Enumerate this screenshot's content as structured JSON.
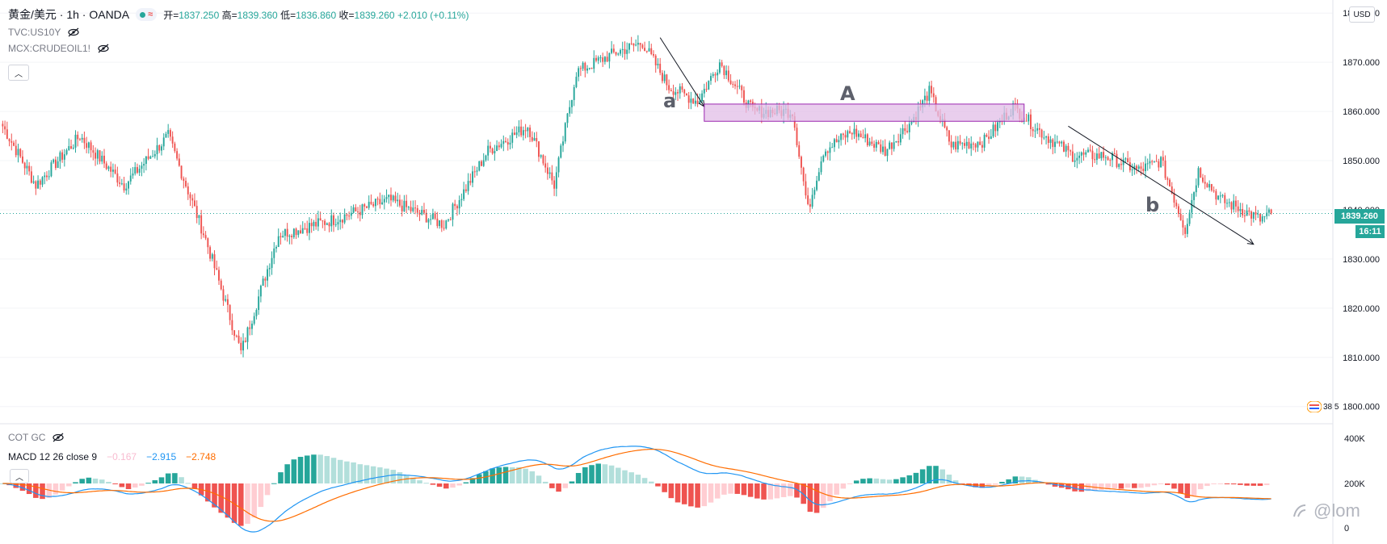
{
  "header": {
    "title": "黄金/美元 · 1h · OANDA",
    "ohlc": [
      {
        "label": "开",
        "value": "1837.250"
      },
      {
        "label": "高",
        "value": "1839.360"
      },
      {
        "label": "低",
        "value": "1836.860"
      },
      {
        "label": "收",
        "value": "1839.260"
      }
    ],
    "change": "+2.010 (+0.11%)",
    "overlays": [
      "TVC:US10Y",
      "MCX:CRUDEOIL1!"
    ],
    "currency_button": "USD"
  },
  "price_tag": {
    "value": "1839.260",
    "countdown": "16:11"
  },
  "indicators": {
    "cot": "COT GC",
    "macd_label": "MACD 12 26 close 9",
    "macd_hist": "−0.167",
    "macd_line": "−2.915",
    "macd_signal": "−2.748",
    "flag_text": "38 5"
  },
  "annotations": {
    "a": "a",
    "A": "A",
    "b": "b"
  },
  "watermark": "@lom",
  "colors": {
    "up": "#26a69a",
    "down": "#ef5350",
    "macd": "#2196f3",
    "signal": "#ff6d00",
    "box": "#e1bee7"
  },
  "chart_data": {
    "type": "candlestick",
    "symbol": "XAUUSD",
    "price_axis": {
      "ticks": [
        1800,
        1810,
        1820,
        1830,
        1840,
        1850,
        1860,
        1870,
        1880
      ],
      "ylim": [
        1797,
        1882
      ],
      "tick_labels": [
        "1800.000",
        "1810.000",
        "1820.000",
        "1830.000",
        "1840.000",
        "1850.000",
        "1860.000",
        "1870.000",
        "1880.000"
      ]
    },
    "macd_axis": {
      "tick_labels": [
        "400K",
        "200K",
        "0"
      ]
    },
    "key_points": [
      {
        "x": 0,
        "price": 1857
      },
      {
        "x": 15,
        "price": 1845
      },
      {
        "x": 35,
        "price": 1855
      },
      {
        "x": 55,
        "price": 1845
      },
      {
        "x": 75,
        "price": 1855
      },
      {
        "x": 92,
        "price": 1834
      },
      {
        "x": 108,
        "price": 1811
      },
      {
        "x": 125,
        "price": 1835
      },
      {
        "x": 150,
        "price": 1838
      },
      {
        "x": 175,
        "price": 1842
      },
      {
        "x": 200,
        "price": 1837
      },
      {
        "x": 220,
        "price": 1852
      },
      {
        "x": 238,
        "price": 1857
      },
      {
        "x": 250,
        "price": 1845
      },
      {
        "x": 260,
        "price": 1868
      },
      {
        "x": 278,
        "price": 1872
      },
      {
        "x": 290,
        "price": 1874
      },
      {
        "x": 302,
        "price": 1865
      },
      {
        "x": 315,
        "price": 1862
      },
      {
        "x": 325,
        "price": 1870
      },
      {
        "x": 340,
        "price": 1860
      },
      {
        "x": 358,
        "price": 1860
      },
      {
        "x": 365,
        "price": 1840
      },
      {
        "x": 372,
        "price": 1852
      },
      {
        "x": 385,
        "price": 1856
      },
      {
        "x": 400,
        "price": 1852
      },
      {
        "x": 412,
        "price": 1858
      },
      {
        "x": 420,
        "price": 1864
      },
      {
        "x": 430,
        "price": 1853
      },
      {
        "x": 445,
        "price": 1854
      },
      {
        "x": 458,
        "price": 1861
      },
      {
        "x": 470,
        "price": 1856
      },
      {
        "x": 485,
        "price": 1851
      },
      {
        "x": 500,
        "price": 1851
      },
      {
        "x": 515,
        "price": 1848
      },
      {
        "x": 525,
        "price": 1850
      },
      {
        "x": 536,
        "price": 1836
      },
      {
        "x": 542,
        "price": 1848
      },
      {
        "x": 552,
        "price": 1842
      },
      {
        "x": 562,
        "price": 1840
      },
      {
        "x": 570,
        "price": 1838
      },
      {
        "x": 575,
        "price": 1839.26
      }
    ],
    "annotations": [
      {
        "label": "a",
        "type": "arrow",
        "from": {
          "x": 298,
          "price": 1875
        },
        "to": {
          "x": 318,
          "price": 1861
        }
      },
      {
        "label": "A",
        "type": "rectangle",
        "x1": 318,
        "x2": 463,
        "price_top": 1861.5,
        "price_bottom": 1858
      }
    ],
    "annotations_b": [
      {
        "label": "b",
        "type": "arrow",
        "from": {
          "x": 483,
          "price": 1857
        },
        "to": {
          "x": 567,
          "price": 1833
        }
      }
    ]
  }
}
